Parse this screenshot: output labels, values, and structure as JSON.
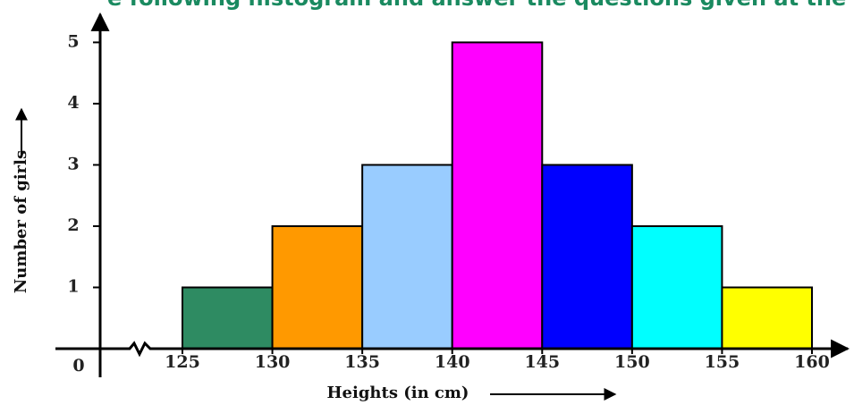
{
  "chart_data": {
    "type": "histogram",
    "title": "e following histogram and answer the questions given at the",
    "x_label": "Heights (in cm)",
    "y_label": "Number of girls",
    "origin_label": "0",
    "bins": [
      125,
      130,
      135,
      140,
      145,
      150,
      155,
      160
    ],
    "values": [
      1,
      2,
      3,
      5,
      3,
      2,
      1
    ],
    "colors": [
      "#2e8b62",
      "#ff9900",
      "#99ccff",
      "#ff00ff",
      "#0000ff",
      "#00ffff",
      "#ffff00"
    ],
    "xlim": [
      125,
      160
    ],
    "ylim": [
      0,
      5.4
    ],
    "xticks": [
      125,
      130,
      135,
      140,
      145,
      150,
      155,
      160
    ],
    "yticks": [
      1,
      2,
      3,
      4,
      5
    ]
  }
}
